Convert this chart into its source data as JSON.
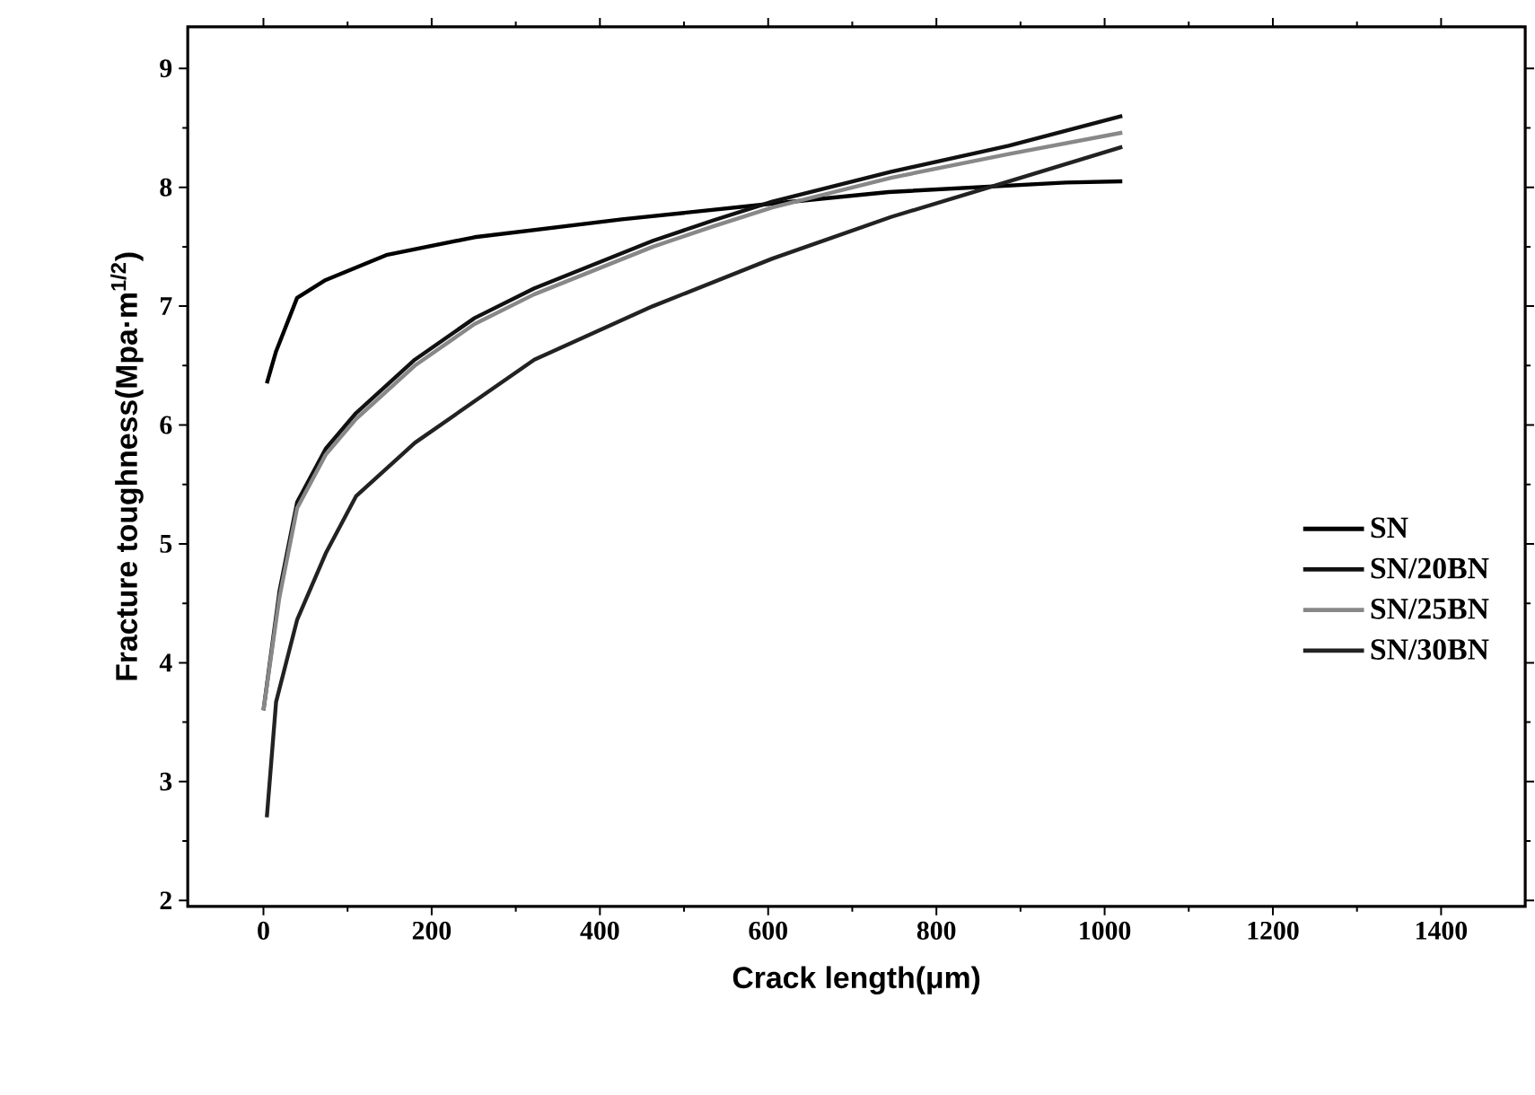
{
  "chart_data": {
    "type": "line",
    "xlabel": "Crack length(μm)",
    "ylabel": "Fracture toughness(Mpa·m$^{1/2}$)",
    "xlim": [
      -90,
      1500
    ],
    "ylim": [
      1.95,
      9.35
    ],
    "xticks": [
      0,
      200,
      400,
      600,
      800,
      1000,
      1200,
      1400
    ],
    "yticks": [
      2,
      3,
      4,
      5,
      6,
      7,
      8,
      9
    ],
    "grid": false,
    "legend": "right",
    "marker": "none",
    "line_style": "solid",
    "series": [
      {
        "name": "SN",
        "color": "#000000",
        "x": [
          4,
          15,
          40,
          74,
          146,
          251,
          426,
          601,
          743,
          954,
          1021
        ],
        "values": [
          6.35,
          6.62,
          7.07,
          7.22,
          7.43,
          7.58,
          7.73,
          7.86,
          7.96,
          8.04,
          8.05
        ]
      },
      {
        "name": "SN/20BN",
        "color": "#111111",
        "x": [
          0,
          19,
          40,
          74,
          110,
          180,
          251,
          322,
          463,
          534,
          605,
          746,
          886,
          1021
        ],
        "values": [
          3.6,
          4.6,
          5.35,
          5.8,
          6.1,
          6.55,
          6.9,
          7.15,
          7.55,
          7.72,
          7.88,
          8.13,
          8.35,
          8.6
        ]
      },
      {
        "name": "SN/25BN",
        "color": "#888888",
        "x": [
          0,
          19,
          40,
          74,
          110,
          180,
          251,
          322,
          463,
          534,
          605,
          746,
          886,
          1021
        ],
        "values": [
          3.6,
          4.55,
          5.3,
          5.75,
          6.05,
          6.5,
          6.85,
          7.1,
          7.5,
          7.67,
          7.83,
          8.08,
          8.28,
          8.46
        ]
      },
      {
        "name": "SN/30BN",
        "color": "#222222",
        "x": [
          4,
          15,
          40,
          74,
          110,
          180,
          251,
          322,
          463,
          605,
          746,
          886,
          1021
        ],
        "values": [
          2.7,
          3.67,
          4.36,
          4.92,
          5.4,
          5.85,
          6.2,
          6.55,
          7.0,
          7.4,
          7.75,
          8.05,
          8.34
        ]
      }
    ]
  }
}
